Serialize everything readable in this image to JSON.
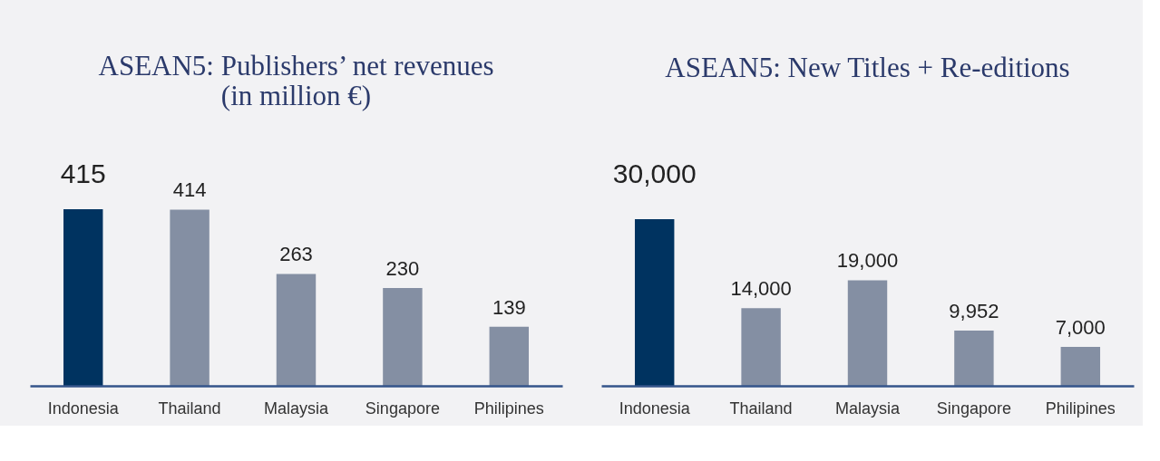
{
  "chart_data": [
    {
      "type": "bar",
      "title": "ASEAN5: Publishers’ net revenues (in million €)",
      "categories": [
        "Indonesia",
        "Thailand",
        "Malaysia",
        "Singapore",
        "Philipines"
      ],
      "values": [
        415,
        414,
        263,
        230,
        139
      ],
      "colors": [
        "#003360",
        "#848fa3",
        "#848fa3",
        "#848fa3",
        "#848fa3"
      ],
      "data_labels": true
    },
    {
      "type": "bar",
      "title": "ASEAN5: New Titles + Re-editions",
      "categories": [
        "Indonesia",
        "Thailand",
        "Malaysia",
        "Singapore",
        "Philipines"
      ],
      "values": [
        30000,
        14000,
        19000,
        9952,
        7000
      ],
      "value_labels": [
        "30,000",
        "14,000",
        "19,000",
        "9,952",
        "7,000"
      ],
      "colors": [
        "#003360",
        "#848fa3",
        "#848fa3",
        "#848fa3",
        "#848fa3"
      ]
    }
  ]
}
